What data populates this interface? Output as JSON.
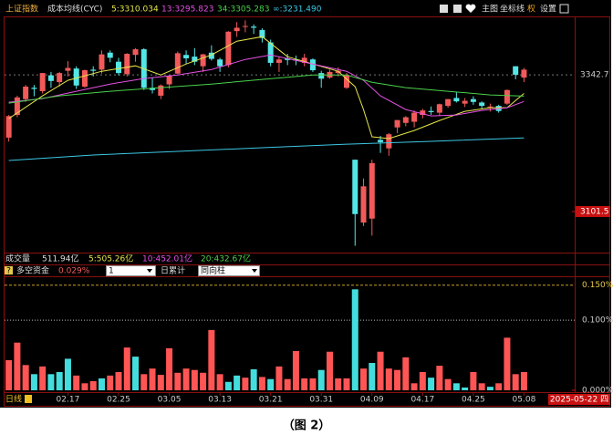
{
  "toolbar": {
    "symbol": "上证指数",
    "indicator": "成本均线(CYC)",
    "buttons": [
      "主图",
      "坐标线",
      "权",
      "设置"
    ]
  },
  "chart_data": [
    {
      "type": "candlestick",
      "open": [
        3232,
        3272,
        3300,
        3320,
        3314,
        3342,
        3330,
        3350,
        3354,
        3322,
        3352,
        3352,
        3382,
        3366,
        3344,
        3378,
        3388,
        3320,
        3306,
        3326,
        3345,
        3378,
        3375,
        3358,
        3382,
        3370,
        3360,
        3420,
        3428,
        3428,
        3422,
        3400,
        3364,
        3372,
        3370,
        3364,
        3370,
        3346,
        3338,
        3346,
        3320,
        3193,
        3082,
        3089,
        3228,
        3213,
        3250,
        3258,
        3260,
        3272,
        3279,
        3276,
        3288,
        3302,
        3292,
        3300,
        3294,
        3286,
        3288,
        3292,
        3358,
        3338
      ],
      "high": [
        3272,
        3306,
        3325,
        3325,
        3346,
        3348,
        3348,
        3367,
        3358,
        3352,
        3358,
        3386,
        3386,
        3373,
        3381,
        3390,
        3390,
        3338,
        3326,
        3342,
        3384,
        3386,
        3390,
        3380,
        3395,
        3373,
        3420,
        3436,
        3439,
        3432,
        3425,
        3405,
        3375,
        3380,
        3377,
        3380,
        3372,
        3350,
        3352,
        3356,
        3346,
        3193,
        3160,
        3193,
        3235,
        3240,
        3263,
        3270,
        3280,
        3283,
        3287,
        3292,
        3300,
        3312,
        3302,
        3305,
        3296,
        3292,
        3290,
        3317,
        3358,
        3355
      ],
      "low": [
        3225,
        3268,
        3295,
        3305,
        3310,
        3320,
        3322,
        3340,
        3318,
        3320,
        3340,
        3345,
        3365,
        3342,
        3340,
        3366,
        3316,
        3310,
        3300,
        3318,
        3344,
        3362,
        3360,
        3348,
        3368,
        3348,
        3356,
        3410,
        3418,
        3415,
        3400,
        3358,
        3348,
        3360,
        3360,
        3358,
        3348,
        3320,
        3336,
        3340,
        3318,
        3041,
        3076,
        3059,
        3205,
        3200,
        3240,
        3252,
        3250,
        3266,
        3272,
        3270,
        3285,
        3294,
        3286,
        3290,
        3282,
        3278,
        3276,
        3290,
        3335,
        3330
      ],
      "close": [
        3270,
        3303,
        3322,
        3318,
        3346,
        3332,
        3346,
        3355,
        3324,
        3351,
        3350,
        3379,
        3373,
        3346,
        3380,
        3388,
        3320,
        3316,
        3324,
        3341,
        3381,
        3372,
        3366,
        3379,
        3371,
        3358,
        3419,
        3426,
        3429,
        3426,
        3408,
        3364,
        3370,
        3369,
        3368,
        3373,
        3351,
        3336,
        3348,
        3350,
        3342,
        3097,
        3146,
        3187,
        3224,
        3238,
        3263,
        3268,
        3276,
        3280,
        3277,
        3291,
        3300,
        3296,
        3297,
        3295,
        3288,
        3287,
        3279,
        3316,
        3343,
        3352
      ],
      "up_color": "#f25a5a",
      "down_color": "#54e6e6",
      "xlim": [
        -0.5,
        67
      ],
      "ylim": [
        3029,
        3446
      ],
      "yticks": [
        3342.7,
        3101.5
      ],
      "series": [
        {
          "name": "5:3310.034",
          "color": "#e6e64a",
          "x": [
            0,
            4,
            7,
            11,
            15,
            18,
            21,
            24,
            27,
            30,
            33,
            36,
            39,
            41,
            42,
            43,
            45,
            48,
            51,
            54,
            57,
            59,
            61
          ],
          "values": [
            3265.5,
            3305.7,
            3333.1,
            3349.1,
            3358.8,
            3342.7,
            3362.0,
            3378.1,
            3402.2,
            3410.2,
            3374.9,
            3362.0,
            3349.1,
            3321.8,
            3281.6,
            3233.4,
            3230.2,
            3244.6,
            3262.3,
            3278.4,
            3284.8,
            3284.8,
            3310.0
          ]
        },
        {
          "name": "13:3295.823",
          "color": "#e650e6",
          "x": [
            0,
            4,
            8,
            12,
            16,
            20,
            24,
            28,
            31,
            34,
            37,
            40,
            42,
            44,
            47,
            50,
            53,
            56,
            59,
            61
          ],
          "values": [
            3294.5,
            3300.9,
            3313.8,
            3326.6,
            3336.3,
            3342.7,
            3352.3,
            3370.0,
            3378.1,
            3368.4,
            3358.8,
            3349.1,
            3333.1,
            3305.7,
            3281.6,
            3270.4,
            3272.0,
            3280.0,
            3284.8,
            3295.8
          ]
        },
        {
          "name": "34:3305.283",
          "color": "#4ad24a",
          "x": [
            0,
            6,
            12,
            18,
            24,
            30,
            36,
            40,
            43,
            47,
            52,
            57,
            61
          ],
          "values": [
            3292.9,
            3305.7,
            3313.8,
            3320.2,
            3326.6,
            3334.7,
            3342.7,
            3342.7,
            3329.8,
            3320.2,
            3313.8,
            3307.3,
            3305.3
          ]
        },
        {
          "name": "∞:3231.490",
          "color": "#3cc8e6",
          "x": [
            0,
            10,
            20,
            30,
            40,
            50,
            61
          ],
          "values": [
            3191.6,
            3201.2,
            3207.7,
            3214.1,
            3220.5,
            3225.4,
            3231.5
          ]
        }
      ]
    },
    {
      "type": "bar",
      "values": [
        0.043,
        0.068,
        0.036,
        0.023,
        0.034,
        0.023,
        0.026,
        0.045,
        0.021,
        0.01,
        0.013,
        0.017,
        0.021,
        0.026,
        0.061,
        0.048,
        0.023,
        0.031,
        0.022,
        0.06,
        0.025,
        0.031,
        0.029,
        0.025,
        0.086,
        0.023,
        0.012,
        0.021,
        0.018,
        0.03,
        0.019,
        0.016,
        0.034,
        0.016,
        0.056,
        0.017,
        0.017,
        0.029,
        0.055,
        0.017,
        0.017,
        0.144,
        0.031,
        0.039,
        0.055,
        0.031,
        0.029,
        0.047,
        0.01,
        0.026,
        0.018,
        0.035,
        0.016,
        0.01,
        0.004,
        0.026,
        0.01,
        0.005,
        0.01,
        0.075,
        0.023,
        0.026
      ],
      "colors": [
        "#f55",
        "#f55",
        "#f55",
        "#4dd",
        "#f55",
        "#4dd",
        "#4dd",
        "#4dd",
        "#f55",
        "#f55",
        "#f55",
        "#4dd",
        "#f55",
        "#f55",
        "#f55",
        "#4dd",
        "#f55",
        "#f55",
        "#f55",
        "#f55",
        "#f55",
        "#f55",
        "#f55",
        "#f55",
        "#f55",
        "#f55",
        "#4dd",
        "#4dd",
        "#f55",
        "#4dd",
        "#f55",
        "#4dd",
        "#f55",
        "#f55",
        "#f55",
        "#f55",
        "#f55",
        "#4dd",
        "#f55",
        "#f55",
        "#f55",
        "#4dd",
        "#f55",
        "#4dd",
        "#f55",
        "#f55",
        "#f55",
        "#f55",
        "#f55",
        "#f55",
        "#4dd",
        "#f55",
        "#f55",
        "#4dd",
        "#4dd",
        "#f55",
        "#f55",
        "#4dd",
        "#f55",
        "#f55",
        "#f55",
        "#f55"
      ],
      "xlim": [
        -0.5,
        67
      ],
      "ylim": [
        0,
        0.16
      ],
      "yticks": [
        {
          "value": 0.15,
          "label": "0.150%"
        },
        {
          "value": 0.1,
          "label": "0.100%"
        },
        {
          "value": 0,
          "label": "0.000%"
        }
      ],
      "xticks": [
        {
          "value": 7,
          "label": "02.17"
        },
        {
          "value": 13,
          "label": "02.25"
        },
        {
          "value": 19,
          "label": "03.05"
        },
        {
          "value": 25,
          "label": "03.13"
        },
        {
          "value": 31,
          "label": "03.21"
        },
        {
          "value": 37,
          "label": "03.31"
        },
        {
          "value": 43,
          "label": "04.09"
        },
        {
          "value": 49,
          "label": "04.17"
        },
        {
          "value": 55,
          "label": "04.25"
        },
        {
          "value": 61,
          "label": "05.08"
        }
      ]
    }
  ],
  "volume_header": {
    "name": "成交量",
    "total": "511.94亿",
    "ma": [
      "5:505.26亿",
      "10:452.01亿",
      "20:432.67亿"
    ]
  },
  "indicator_header": {
    "help": "?",
    "name": "多空资金",
    "value": "0.029%",
    "param": "1",
    "mode": "日累计",
    "style": "同向柱"
  },
  "footer": {
    "period": "日线",
    "date": "2025-05-22 四"
  },
  "caption": "（图 2）"
}
